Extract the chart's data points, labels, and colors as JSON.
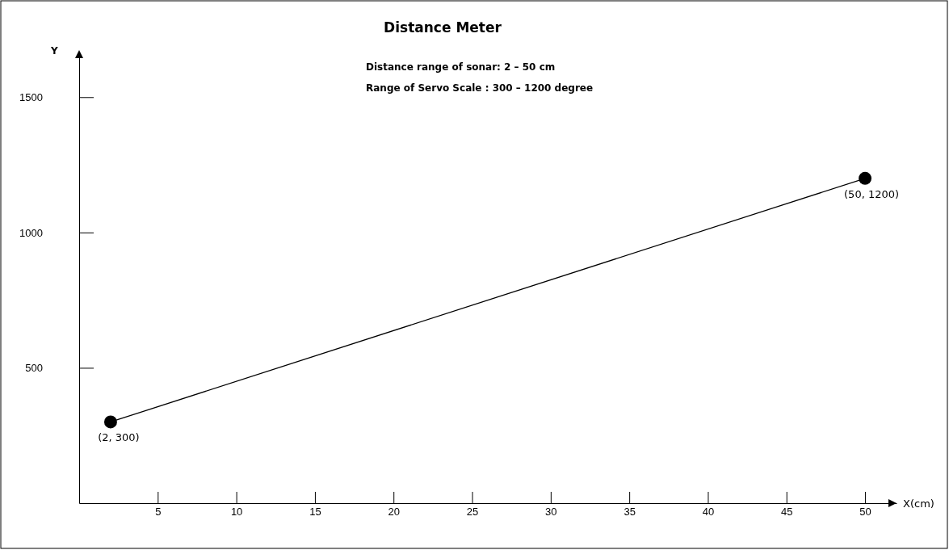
{
  "chart_data": {
    "type": "line",
    "title": "Distance Meter",
    "annotations": [
      "Distance range of sonar: 2 – 50 cm",
      "Range of Servo Scale : 300 – 1200 degree",
      {
        "text": "(2, 300)",
        "x": 2,
        "y": 300
      },
      {
        "text": "(50, 1200)",
        "x": 50,
        "y": 1200
      }
    ],
    "xlabel": "X(cm)",
    "ylabel": "Y",
    "x": [
      2,
      50
    ],
    "series": [
      {
        "color": "#000000",
        "values": [
          300,
          1200
        ]
      }
    ],
    "xlim": [
      0,
      52
    ],
    "ylim": [
      0,
      1650
    ],
    "xticks": [
      5,
      10,
      15,
      20,
      25,
      30,
      35,
      40,
      45,
      50
    ],
    "yticks": [
      500,
      1000,
      1500
    ],
    "marker": "circle",
    "line_style": "solid"
  }
}
